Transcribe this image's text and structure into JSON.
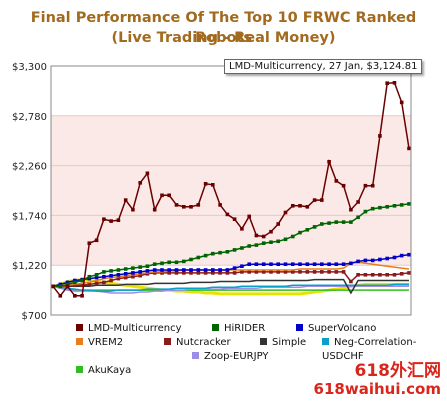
{
  "colors": {
    "title": "#a16a1e",
    "band": "#fbe9e7",
    "grid": "#e8c9c4",
    "watermark": "#d9261c"
  },
  "chart_data": {
    "type": "line",
    "title": "Final Performance Of The Top 10 FRWC Ranked Robots",
    "subtitle": "(Live Trading - Real Money)",
    "xlabel": "",
    "ylabel": "",
    "ylim": [
      700,
      3300
    ],
    "yticks": [
      "$3,300",
      "$2,780",
      "$2,260",
      "$1,740",
      "$1,220",
      "$700"
    ],
    "grid": true,
    "legend_position": "bottom",
    "tooltip": "LMD-Multicurrency, 27 Jan, $3,124.81",
    "series": [
      {
        "name": "LMD-Multicurrency",
        "color": "#6b0000",
        "values": [
          1000,
          900,
          1000,
          900,
          900,
          1450,
          1480,
          1700,
          1680,
          1690,
          1900,
          1800,
          2080,
          2180,
          1800,
          1950,
          1950,
          1850,
          1830,
          1830,
          1850,
          2070,
          2060,
          1850,
          1750,
          1700,
          1600,
          1730,
          1530,
          1520,
          1570,
          1650,
          1770,
          1840,
          1840,
          1830,
          1900,
          1900,
          2300,
          2100,
          2050,
          1800,
          1880,
          2050,
          2050,
          2570,
          3120,
          3125,
          2920,
          2440
        ]
      },
      {
        "name": "HiRIDER",
        "color": "#006400",
        "values": [
          1000,
          1000,
          1020,
          1040,
          1060,
          1100,
          1120,
          1150,
          1160,
          1170,
          1180,
          1190,
          1200,
          1210,
          1230,
          1240,
          1250,
          1250,
          1260,
          1280,
          1300,
          1320,
          1340,
          1350,
          1360,
          1380,
          1400,
          1420,
          1430,
          1450,
          1460,
          1470,
          1490,
          1520,
          1560,
          1590,
          1620,
          1650,
          1660,
          1670,
          1670,
          1670,
          1720,
          1780,
          1810,
          1820,
          1830,
          1840,
          1850,
          1860
        ]
      },
      {
        "name": "SuperVolcano",
        "color": "#0000cc",
        "values": [
          1000,
          1020,
          1040,
          1060,
          1070,
          1080,
          1090,
          1100,
          1110,
          1120,
          1130,
          1140,
          1150,
          1160,
          1170,
          1170,
          1170,
          1170,
          1170,
          1170,
          1170,
          1170,
          1170,
          1170,
          1170,
          1190,
          1210,
          1230,
          1230,
          1230,
          1230,
          1230,
          1230,
          1230,
          1230,
          1230,
          1230,
          1230,
          1230,
          1230,
          1230,
          1240,
          1260,
          1270,
          1270,
          1280,
          1290,
          1300,
          1320,
          1330
        ]
      },
      {
        "name": "VREM2",
        "color": "#e87d1e",
        "values": [
          1000,
          1000,
          1010,
          1020,
          1030,
          1040,
          1060,
          1080,
          1090,
          1100,
          1110,
          1120,
          1130,
          1140,
          1150,
          1150,
          1160,
          1160,
          1170,
          1170,
          1170,
          1170,
          1170,
          1170,
          1170,
          1170,
          1170,
          1170,
          1170,
          1170,
          1170,
          1170,
          1170,
          1170,
          1180,
          1180,
          1180,
          1180,
          1180,
          1180,
          1190,
          1240,
          1250,
          1240,
          1230,
          1220,
          1210,
          1200,
          1190,
          1180
        ]
      },
      {
        "name": "Nutcracker",
        "color": "#8b1a1a",
        "values": [
          1000,
          1000,
          1000,
          1010,
          1010,
          1020,
          1030,
          1040,
          1060,
          1080,
          1090,
          1100,
          1110,
          1130,
          1140,
          1140,
          1140,
          1140,
          1140,
          1140,
          1140,
          1140,
          1140,
          1140,
          1140,
          1140,
          1150,
          1150,
          1150,
          1150,
          1150,
          1150,
          1150,
          1150,
          1150,
          1150,
          1150,
          1150,
          1150,
          1150,
          1150,
          1050,
          1120,
          1120,
          1120,
          1120,
          1120,
          1120,
          1130,
          1140
        ]
      },
      {
        "name": "Simple",
        "color": "#333333",
        "values": [
          1000,
          1000,
          1000,
          1000,
          1000,
          1000,
          1010,
          1010,
          1010,
          1010,
          1020,
          1020,
          1020,
          1020,
          1030,
          1030,
          1030,
          1030,
          1030,
          1040,
          1040,
          1040,
          1040,
          1050,
          1050,
          1050,
          1050,
          1050,
          1060,
          1060,
          1060,
          1060,
          1060,
          1060,
          1060,
          1060,
          1070,
          1070,
          1070,
          1070,
          1070,
          930,
          1060,
          1060,
          1060,
          1060,
          1060,
          1060,
          1060,
          1060
        ]
      },
      {
        "name": "Neg-Correlation-USDCHF",
        "color": "#0aa0c8",
        "values": [
          1000,
          990,
          980,
          970,
          960,
          960,
          950,
          950,
          950,
          960,
          960,
          960,
          960,
          970,
          970,
          970,
          970,
          980,
          980,
          980,
          980,
          980,
          990,
          990,
          990,
          990,
          1000,
          1000,
          1000,
          1000,
          1000,
          1000,
          1000,
          1010,
          1010,
          1010,
          1010,
          1010,
          1010,
          1010,
          1010,
          1010,
          1010,
          1010,
          1010,
          1010,
          1010,
          1020,
          1020,
          1020
        ]
      },
      {
        "name": "Zoop-EURJPY",
        "color": "#9c8ee8",
        "values": [
          1000,
          980,
          960,
          950,
          950,
          950,
          950,
          940,
          930,
          930,
          930,
          930,
          940,
          940,
          950,
          950,
          960,
          960,
          960,
          970,
          970,
          970,
          970,
          970,
          980,
          980,
          980,
          980,
          980,
          990,
          990,
          990,
          990,
          990,
          990,
          1000,
          1000,
          1000,
          1000,
          1000,
          1000,
          1000,
          1000,
          1000,
          1000,
          1000,
          1000,
          1000,
          1000,
          1000
        ]
      },
      {
        "name": "AkuKaya",
        "color": "#33bb22",
        "values": [
          1000,
          980,
          970,
          960,
          960,
          960,
          960,
          960,
          960,
          960,
          960,
          960,
          960,
          960,
          960,
          960,
          960,
          960,
          960,
          960,
          960,
          960,
          960,
          960,
          960,
          960,
          960,
          960,
          960,
          960,
          960,
          960,
          960,
          960,
          960,
          960,
          960,
          960,
          960,
          960,
          960,
          960,
          960,
          960,
          960,
          960,
          960,
          960,
          960,
          960
        ]
      },
      {
        "name": "",
        "color": "#e8e200",
        "values": [
          1000,
          1020,
          1050,
          1060,
          1070,
          1060,
          1050,
          1040,
          1030,
          1020,
          1010,
          1000,
          990,
          980,
          970,
          960,
          960,
          950,
          950,
          940,
          940,
          930,
          930,
          920,
          920,
          920,
          920,
          920,
          920,
          920,
          920,
          920,
          920,
          920,
          920,
          930,
          940,
          950,
          960,
          970,
          980,
          1000,
          1010,
          1020,
          1020,
          1020,
          1020,
          1020,
          1020,
          1020
        ]
      }
    ]
  },
  "watermark": {
    "line1": "618外汇网",
    "line2": "618waihui.com"
  }
}
